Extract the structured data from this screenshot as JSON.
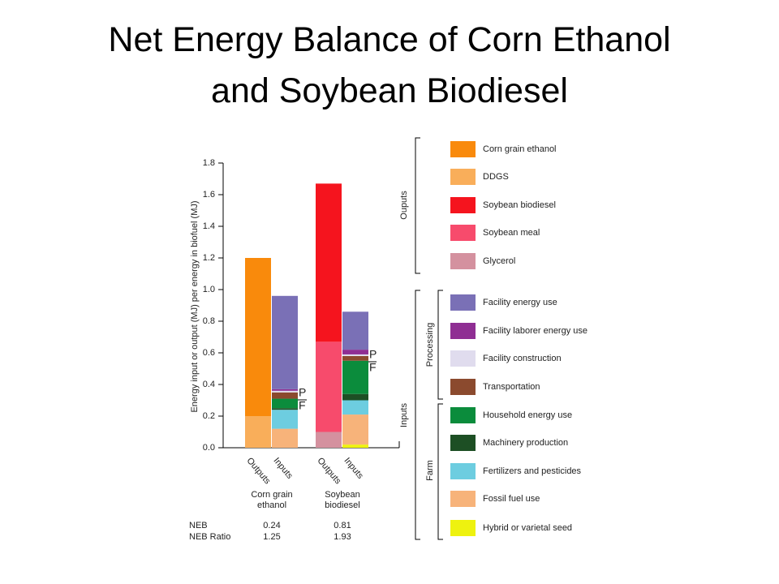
{
  "chart_data": {
    "type": "bar",
    "stacked": true,
    "title": "Net Energy Balance of Corn Ethanol and Soybean Biodiesel",
    "y_label": "Energy input or output (MJ) per energy in biofuel (MJ)",
    "ylim": [
      0,
      1.8
    ],
    "yticks": [
      {
        "value": 0,
        "label": "0.0"
      },
      0.2,
      0.4,
      0.6,
      0.8,
      {
        "value": 1,
        "label": "1.0"
      },
      1.2,
      1.4,
      1.6,
      1.8
    ],
    "categories": [
      "Outputs",
      "Inputs",
      "Outputs",
      "Inputs"
    ],
    "groups": [
      "Corn grain ethanol",
      "Soybean biodiesel"
    ],
    "legend_groups": [
      "Ouputs",
      "Inputs",
      "Processing",
      "Farm"
    ],
    "annotations": [
      "P",
      "F",
      "P",
      "F"
    ],
    "series": [
      {
        "name": "Corn grain ethanol",
        "color": "#f98a0c",
        "values": [
          1.0,
          null,
          null,
          null
        ]
      },
      {
        "name": "DDGS",
        "color": "#f9ae5a",
        "values": [
          0.2,
          null,
          null,
          null
        ]
      },
      {
        "name": "Soybean biodiesel",
        "color": "#f5141e",
        "values": [
          null,
          null,
          1.0,
          null
        ]
      },
      {
        "name": "Soybean meal",
        "color": "#f74b6c",
        "values": [
          null,
          null,
          0.57,
          null
        ]
      },
      {
        "name": "Glycerol",
        "color": "#d4919f",
        "values": [
          null,
          null,
          0.1,
          null
        ]
      },
      {
        "name": "Facility energy use",
        "color": "#7a70b6",
        "values": [
          null,
          0.59,
          null,
          0.24
        ]
      },
      {
        "name": "Facility laborer energy use",
        "color": "#8f2e93",
        "values": [
          null,
          0.01,
          null,
          0.03
        ]
      },
      {
        "name": "Facility construction",
        "color": "#e0dcee",
        "values": [
          null,
          0.01,
          null,
          0.01
        ]
      },
      {
        "name": "Transportation",
        "color": "#8b4a2e",
        "values": [
          null,
          0.04,
          null,
          0.03
        ]
      },
      {
        "name": "Household energy use",
        "color": "#0b8c3c",
        "values": [
          null,
          0.06,
          null,
          0.21
        ]
      },
      {
        "name": "Machinery production",
        "color": "#1d4f24",
        "values": [
          null,
          0.01,
          null,
          0.04
        ]
      },
      {
        "name": "Fertilizers and pesticides",
        "color": "#6dcde0",
        "values": [
          null,
          0.12,
          null,
          0.09
        ]
      },
      {
        "name": "Fossil fuel use",
        "color": "#f7b37a",
        "values": [
          null,
          0.12,
          null,
          0.19
        ]
      },
      {
        "name": "Hybrid or varietal seed",
        "color": "#eef20f",
        "values": [
          null,
          null,
          null,
          0.02
        ]
      }
    ],
    "table": {
      "rows": [
        {
          "label": "NEB",
          "values": [
            0.24,
            0.81
          ]
        },
        {
          "label": "NEB Ratio",
          "values": [
            1.25,
            1.93
          ]
        }
      ]
    }
  }
}
